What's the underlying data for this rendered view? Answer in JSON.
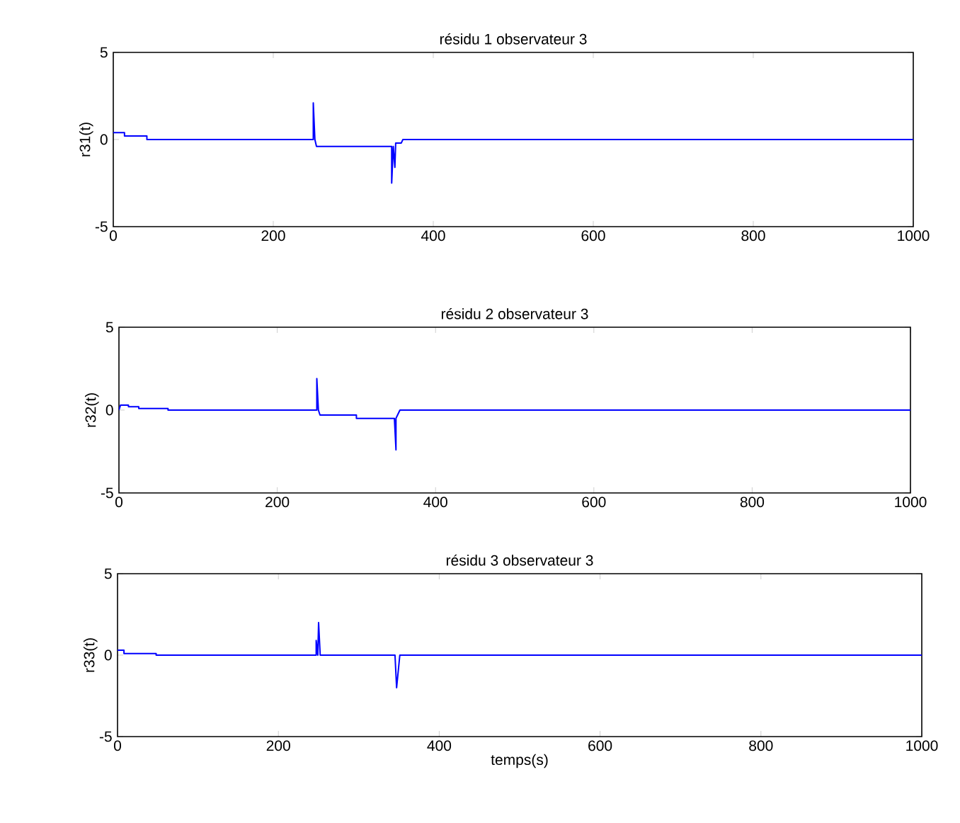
{
  "chart_data": [
    {
      "type": "line",
      "title": "résidu 1 observateur 3",
      "ylabel": "r31(t)",
      "color": "#0000ff",
      "xlim": [
        0,
        1000
      ],
      "ylim": [
        -5,
        5
      ],
      "xticks": [
        0,
        200,
        400,
        600,
        800,
        1000
      ],
      "yticks": [
        -5,
        0,
        5
      ],
      "x": [
        0,
        14,
        14,
        42,
        42,
        250,
        250,
        252,
        254,
        348,
        348,
        350,
        352,
        353,
        360,
        362,
        1000
      ],
      "values": [
        0.4,
        0.4,
        0.2,
        0.2,
        0,
        0,
        2.1,
        0,
        -0.4,
        -0.4,
        -2.5,
        -0.4,
        -1.6,
        -0.2,
        -0.2,
        0,
        0
      ]
    },
    {
      "type": "line",
      "title": "résidu 2 observateur 3",
      "ylabel": "r32(t)",
      "color": "#0000ff",
      "xlim": [
        0,
        1000
      ],
      "ylim": [
        -5,
        5
      ],
      "xticks": [
        0,
        200,
        400,
        600,
        800,
        1000
      ],
      "yticks": [
        -5,
        0,
        5
      ],
      "x": [
        0,
        2,
        2,
        12,
        12,
        25,
        25,
        62,
        62,
        250,
        250,
        252,
        254,
        300,
        300,
        348,
        350,
        350,
        352,
        355,
        1000
      ],
      "values": [
        0,
        0.3,
        0.3,
        0.3,
        0.2,
        0.2,
        0.1,
        0.1,
        0,
        0,
        1.9,
        0,
        -0.3,
        -0.3,
        -0.5,
        -0.5,
        -2.4,
        -0.5,
        -0.3,
        0,
        0
      ]
    },
    {
      "type": "line",
      "title": "résidu 3 observateur 3",
      "ylabel": "r33(t)",
      "xlabel": "temps(s)",
      "color": "#0000ff",
      "xlim": [
        0,
        1000
      ],
      "ylim": [
        -5,
        5
      ],
      "xticks": [
        0,
        200,
        400,
        600,
        800,
        1000
      ],
      "yticks": [
        -5,
        0,
        5
      ],
      "x": [
        0,
        8,
        8,
        48,
        48,
        247,
        247,
        249,
        250,
        252,
        345,
        347,
        349,
        351,
        1000
      ],
      "values": [
        0.3,
        0.3,
        0.1,
        0.1,
        0,
        0,
        0.9,
        0,
        2.0,
        0,
        0,
        -2.0,
        -1.0,
        0,
        0
      ]
    }
  ]
}
